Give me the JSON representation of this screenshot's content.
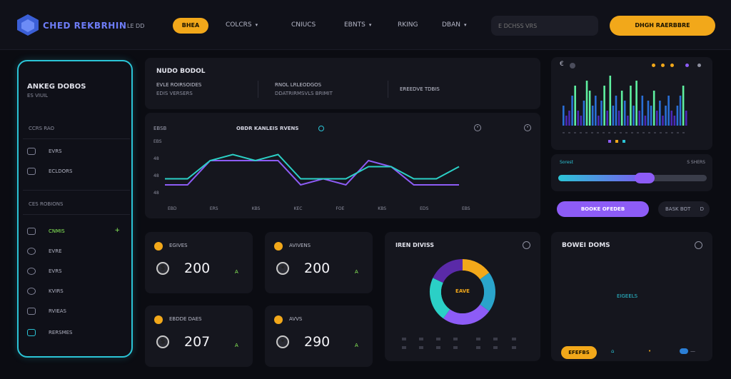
{
  "header": {
    "brand": "CHED REKBRHIN",
    "brand_badge": "LE DD",
    "nav": {
      "active": "BHEA",
      "items": [
        "COLCRS",
        "CNIUCS",
        "EBNTS",
        "RKING",
        "DBAN"
      ]
    },
    "search_placeholder": "E DCHSS VRS",
    "cta_label": "DHGH RAERBBRE"
  },
  "sidebar": {
    "title": "ANKEG DOBOS",
    "subtitle": "ES VIUIL",
    "section1": "CCRS RAO",
    "items_top": [
      {
        "label": "EVRS"
      },
      {
        "label": "ECLDORS"
      }
    ],
    "section2": "CES ROBIONS",
    "items_bottom": [
      {
        "label": "CNMIS",
        "active": true
      },
      {
        "label": "EVRE"
      },
      {
        "label": "EVRS"
      },
      {
        "label": "KVIRS"
      },
      {
        "label": "RVIEAS"
      },
      {
        "label": "RERSMES"
      }
    ],
    "items_bottom_plus": "+"
  },
  "summary": {
    "title": "NUDO BODOL",
    "cols": [
      {
        "a": "EVLE ROIRSOIDES",
        "b": "EDIS VERSERS"
      },
      {
        "a": "RNOL LRLEODGOS",
        "b": "DDATRIRMSVLS BRIMIT"
      },
      {
        "a": "EREEDVE TDBIS",
        "b": ""
      }
    ]
  },
  "line_chart": {
    "corner_label": "EBSB",
    "title": "OBDR KANLEIS RVENS",
    "chart_data": {
      "type": "line",
      "series": [
        {
          "values": [
            2,
            2,
            6,
            6,
            6,
            6,
            2,
            3,
            2,
            6,
            5,
            2,
            2,
            2
          ]
        },
        {
          "values": [
            3,
            3,
            6,
            7,
            6,
            7,
            3,
            3,
            3,
            5,
            5,
            3,
            3,
            5
          ]
        }
      ],
      "y_ticks": [
        "EBS",
        "48",
        "48",
        "48"
      ],
      "x_ticks": [
        "EBD",
        "ERS",
        "KBS",
        "KEC",
        "FOE",
        "KBS",
        "EDS",
        "EBS"
      ],
      "colors": [
        "#8d5cf6",
        "#2bd0c6"
      ]
    }
  },
  "stats": [
    {
      "label": "EGIVES",
      "value": "200",
      "coin": "$",
      "delta": "A"
    },
    {
      "label": "AVIVENS",
      "value": "200",
      "coin": "•",
      "delta": "A"
    },
    {
      "label": "EBDDE DAES",
      "value": "207",
      "coin": "$",
      "delta": "A"
    },
    {
      "label": "AVVS",
      "value": "290",
      "coin": "•",
      "delta": "A"
    }
  ],
  "donut": {
    "title": "IREN DIVISS",
    "center_label": "EAVE",
    "chart_data": {
      "type": "pie",
      "values": [
        15,
        20,
        25,
        22,
        18
      ],
      "colors": [
        "#f2a81a",
        "#2aa4cb",
        "#8d5cf6",
        "#2bd0c6",
        "#5a2aa8"
      ]
    }
  },
  "sparkbars": {
    "back": "€",
    "legend_colors": [
      "#f2a81a",
      "#f2a81a",
      "#f2a81a",
      "#8d5cf6",
      "#8e90a0"
    ],
    "footer_colors": [
      "#8d5cf6",
      "#f2a81a",
      "#2bc4d6"
    ],
    "chart_data": {
      "type": "bar",
      "values": [
        4,
        2,
        3,
        6,
        8,
        3,
        2,
        5,
        9,
        7,
        4,
        6,
        2,
        5,
        8,
        3,
        10,
        4,
        6,
        3,
        7,
        5,
        2,
        8,
        4,
        9,
        3,
        6,
        2,
        5,
        4,
        7,
        3,
        5,
        2,
        4,
        6,
        3,
        2,
        4,
        6,
        8,
        3
      ]
    }
  },
  "slider": {
    "label": "Sorest",
    "value_label": "S SHERS",
    "level_percent": 58
  },
  "buttons": {
    "primary": "BOOKE OFEDEB",
    "secondary": "BASK BOT",
    "secondary_arrow": "D"
  },
  "bottom_card": {
    "title": "BOWEI DOMS",
    "mid_label": "EIGEELS",
    "pill": "EFEFBS",
    "a": "⌂",
    "b": "•",
    "c": "—"
  }
}
